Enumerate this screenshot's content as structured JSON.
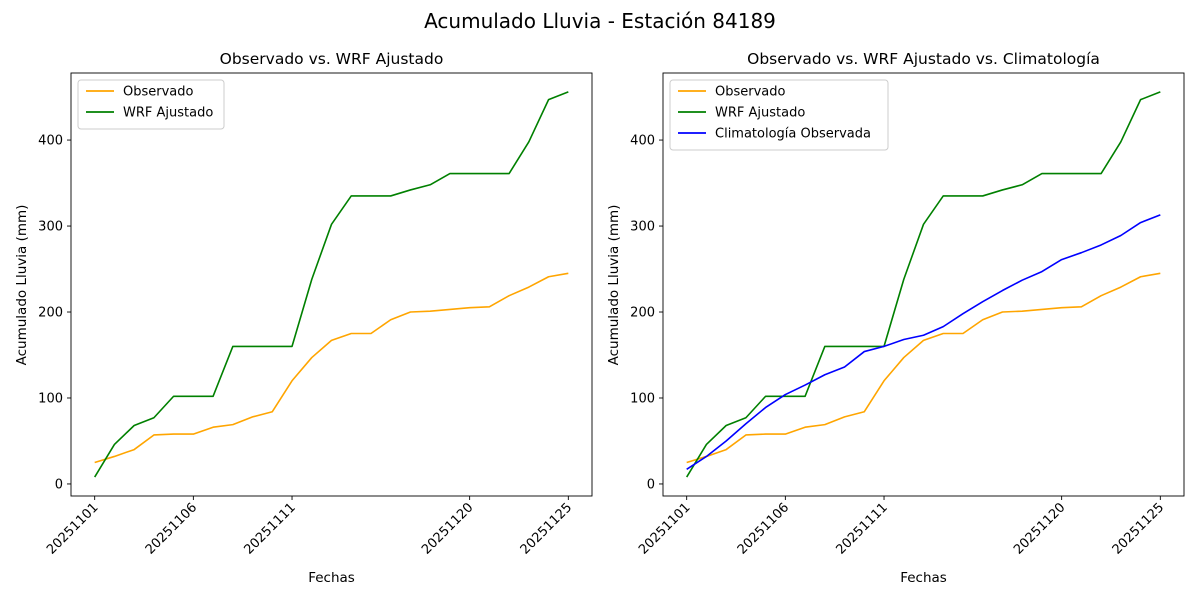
{
  "figure": {
    "suptitle": "Acumulado Lluvia - Estación 84189"
  },
  "chart_data": [
    {
      "type": "line",
      "title": "Observado vs. WRF Ajustado",
      "xlabel": "Fechas",
      "ylabel": "Acumulado Lluvia (mm)",
      "ylim": [
        -14,
        478
      ],
      "yticks": [
        0,
        100,
        200,
        300,
        400
      ],
      "xticks": [
        "20251101",
        "20251106",
        "20251111",
        "20251120",
        "20251125"
      ],
      "x": [
        "20251101",
        "20251102",
        "20251103",
        "20251104",
        "20251105",
        "20251106",
        "20251107",
        "20251108",
        "20251109",
        "20251110",
        "20251111",
        "20251112",
        "20251113",
        "20251114",
        "20251115",
        "20251116",
        "20251117",
        "20251118",
        "20251119",
        "20251120",
        "20251121",
        "20251122",
        "20251123",
        "20251124",
        "20251125"
      ],
      "grid": false,
      "legend": "top-left",
      "series": [
        {
          "name": "Observado",
          "color": "#ffa500",
          "values": [
            25,
            32,
            40,
            57,
            58,
            58,
            66,
            69,
            78,
            84,
            120,
            147,
            167,
            175,
            175,
            191,
            200,
            201,
            203,
            205,
            206,
            219,
            229,
            241,
            245
          ]
        },
        {
          "name": "WRF Ajustado",
          "color": "#008000",
          "values": [
            8,
            46,
            68,
            77,
            102,
            102,
            102,
            160,
            160,
            160,
            160,
            238,
            302,
            335,
            335,
            335,
            342,
            348,
            361,
            361,
            361,
            361,
            398,
            447,
            456
          ]
        }
      ]
    },
    {
      "type": "line",
      "title": "Observado vs. WRF Ajustado vs. Climatología",
      "xlabel": "Fechas",
      "ylabel": "Acumulado Lluvia (mm)",
      "ylim": [
        -14,
        478
      ],
      "yticks": [
        0,
        100,
        200,
        300,
        400
      ],
      "xticks": [
        "20251101",
        "20251106",
        "20251111",
        "20251120",
        "20251125"
      ],
      "x": [
        "20251101",
        "20251102",
        "20251103",
        "20251104",
        "20251105",
        "20251106",
        "20251107",
        "20251108",
        "20251109",
        "20251110",
        "20251111",
        "20251112",
        "20251113",
        "20251114",
        "20251115",
        "20251116",
        "20251117",
        "20251118",
        "20251119",
        "20251120",
        "20251121",
        "20251122",
        "20251123",
        "20251124",
        "20251125"
      ],
      "grid": false,
      "legend": "top-left",
      "series": [
        {
          "name": "Observado",
          "color": "#ffa500",
          "values": [
            25,
            32,
            40,
            57,
            58,
            58,
            66,
            69,
            78,
            84,
            120,
            147,
            167,
            175,
            175,
            191,
            200,
            201,
            203,
            205,
            206,
            219,
            229,
            241,
            245
          ]
        },
        {
          "name": "WRF Ajustado",
          "color": "#008000",
          "values": [
            8,
            46,
            68,
            77,
            102,
            102,
            102,
            160,
            160,
            160,
            160,
            238,
            302,
            335,
            335,
            335,
            342,
            348,
            361,
            361,
            361,
            361,
            398,
            447,
            456
          ]
        },
        {
          "name": "Climatología Observada",
          "color": "#0000ff",
          "values": [
            17,
            32,
            50,
            70,
            89,
            104,
            115,
            127,
            136,
            154,
            160,
            168,
            173,
            183,
            198,
            212,
            225,
            237,
            247,
            261,
            269,
            278,
            289,
            304,
            313
          ]
        }
      ]
    }
  ]
}
